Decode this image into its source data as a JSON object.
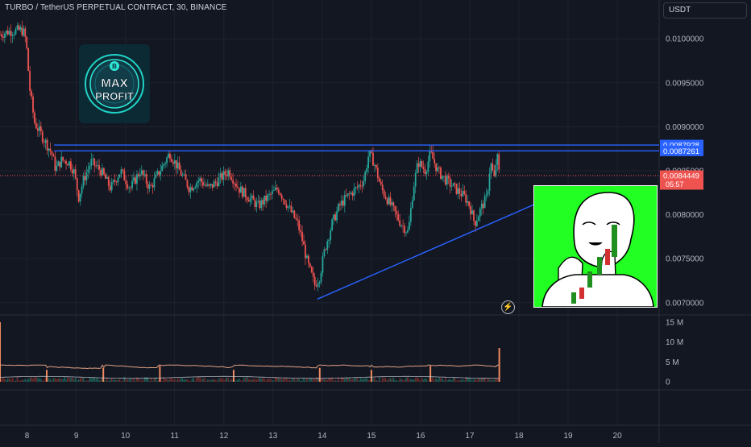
{
  "header": {
    "title": "TURBO / TetherUS PERPETUAL CONTRACT, 30, BINANCE",
    "currency": "USDT"
  },
  "colors": {
    "background": "#131722",
    "up_candle": "#26a69a",
    "down_candle": "#ef5350",
    "resistance_line": "#2962ff",
    "current_price_line": "#ef5350",
    "volume_line": "#e0a080",
    "volume_ma_line": "#d1d4dc",
    "meme_background": "#22ff22"
  },
  "logo": {
    "line1": "MAX",
    "line2": "PROFIT"
  },
  "meme_icon": "wojak-meme-image",
  "chart_data": {
    "type": "line",
    "title": "TURBO / TetherUS PERPETUAL CONTRACT, 30, BINANCE",
    "xlabel": "",
    "ylabel": "",
    "x_ticks": [
      "8",
      "9",
      "10",
      "11",
      "12",
      "13",
      "14",
      "15",
      "16",
      "17",
      "18",
      "19",
      "20"
    ],
    "x_tick_days": [
      8,
      9,
      10,
      11,
      12,
      13,
      14,
      15,
      16,
      17,
      18,
      19,
      20
    ],
    "y_ticks": [
      "0.0100000",
      "0.0095000",
      "0.0090000",
      "0.0085000",
      "0.0080000",
      "0.0075000",
      "0.0070000"
    ],
    "y_tick_values": [
      0.01,
      0.0095,
      0.009,
      0.0085,
      0.008,
      0.0075,
      0.007
    ],
    "ylim": [
      0.00687,
      0.01035
    ],
    "xlim": [
      7.45,
      20.85
    ],
    "series": [
      {
        "points": [
          [
            7.45,
            0.01005
          ],
          [
            7.6,
            0.01008
          ],
          [
            7.75,
            0.01009
          ],
          [
            7.88,
            0.0101
          ],
          [
            7.95,
            0.01006
          ],
          [
            8.0,
            0.00985
          ],
          [
            8.05,
            0.00945
          ],
          [
            8.15,
            0.00905
          ],
          [
            8.3,
            0.0089
          ],
          [
            8.4,
            0.0088
          ],
          [
            8.5,
            0.0087
          ],
          [
            8.58,
            0.00852
          ],
          [
            8.7,
            0.00862
          ],
          [
            8.85,
            0.0086
          ],
          [
            8.95,
            0.0085
          ],
          [
            9.05,
            0.0082
          ],
          [
            9.15,
            0.0084
          ],
          [
            9.3,
            0.0086
          ],
          [
            9.5,
            0.0085
          ],
          [
            9.7,
            0.0083
          ],
          [
            9.9,
            0.0085
          ],
          [
            10.1,
            0.0083
          ],
          [
            10.3,
            0.0085
          ],
          [
            10.5,
            0.0083
          ],
          [
            10.7,
            0.0085
          ],
          [
            10.9,
            0.0087
          ],
          [
            11.1,
            0.0085
          ],
          [
            11.3,
            0.0083
          ],
          [
            11.5,
            0.0084
          ],
          [
            11.7,
            0.0083
          ],
          [
            11.9,
            0.0084
          ],
          [
            12.1,
            0.0085
          ],
          [
            12.3,
            0.0083
          ],
          [
            12.5,
            0.0082
          ],
          [
            12.7,
            0.0081
          ],
          [
            12.9,
            0.0082
          ],
          [
            13.1,
            0.0083
          ],
          [
            13.3,
            0.0081
          ],
          [
            13.5,
            0.0079
          ],
          [
            13.6,
            0.0077
          ],
          [
            13.7,
            0.00745
          ],
          [
            13.85,
            0.0072
          ],
          [
            13.95,
            0.0073
          ],
          [
            14.05,
            0.0076
          ],
          [
            14.2,
            0.0079
          ],
          [
            14.35,
            0.0081
          ],
          [
            14.5,
            0.0082
          ],
          [
            14.7,
            0.0083
          ],
          [
            14.85,
            0.0084
          ],
          [
            14.95,
            0.0087
          ],
          [
            15.05,
            0.0086
          ],
          [
            15.2,
            0.0083
          ],
          [
            15.4,
            0.0081
          ],
          [
            15.6,
            0.0079
          ],
          [
            15.75,
            0.0078
          ],
          [
            15.85,
            0.0083
          ],
          [
            15.95,
            0.0086
          ],
          [
            16.1,
            0.0085
          ],
          [
            16.2,
            0.0087
          ],
          [
            16.35,
            0.0085
          ],
          [
            16.5,
            0.0084
          ],
          [
            16.7,
            0.0083
          ],
          [
            16.9,
            0.0082
          ],
          [
            17.0,
            0.0081
          ],
          [
            17.1,
            0.0079
          ],
          [
            17.25,
            0.0081
          ],
          [
            17.35,
            0.0082
          ],
          [
            17.42,
            0.0086
          ],
          [
            17.5,
            0.0084
          ],
          [
            17.55,
            0.0087
          ],
          [
            17.6,
            0.00845
          ]
        ]
      }
    ],
    "resistance_levels": [
      0.0087928,
      0.0087261
    ],
    "resistance_start_day": 8.55,
    "current_price": 0.0084449,
    "price_labels": [
      {
        "value": "0.0087928",
        "color": "#2962ff"
      },
      {
        "value": "0.0087261",
        "color": "#2962ff"
      },
      {
        "value": "0.0084449",
        "color": "#ef5350"
      }
    ],
    "countdown": "05:57",
    "trendline": {
      "from": [
        13.9,
        0.00704
      ],
      "to": [
        18.9,
        0.00826
      ]
    },
    "volume": {
      "y_ticks": [
        "15 M",
        "10 M",
        "5 M",
        "0"
      ],
      "y_tick_values": [
        15,
        10,
        5,
        0
      ],
      "ylim": [
        0,
        16
      ],
      "spike_days": [
        7.45,
        8.4,
        9.55,
        10.7,
        12.2,
        13.95,
        15.0,
        16.2,
        17.6
      ],
      "spike_values": [
        15,
        3,
        3.5,
        4,
        3,
        3.5,
        3,
        4,
        8.5
      ]
    }
  }
}
